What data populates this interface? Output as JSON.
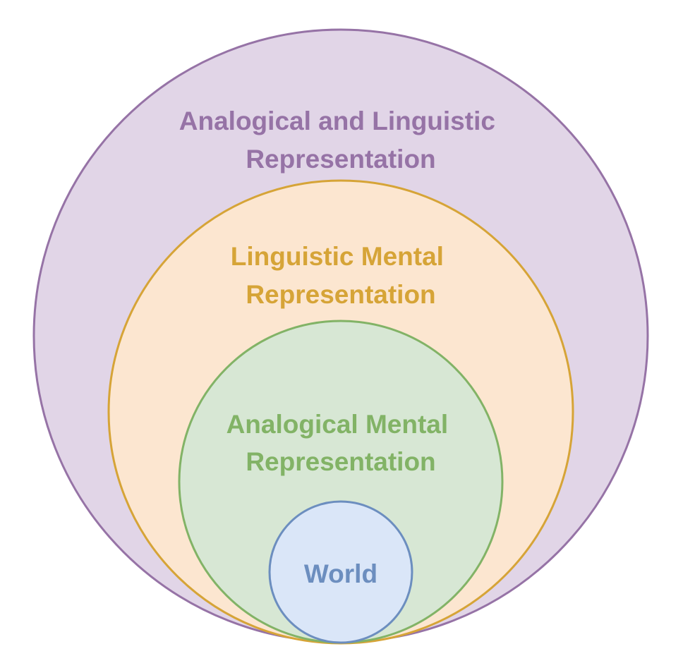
{
  "rings": {
    "outer": {
      "line1": "Analogical and Linguistic",
      "line2": "Representation",
      "fill": "#e1d5e7",
      "stroke": "#9673a6"
    },
    "linguistic": {
      "line1": "Linguistic Mental",
      "line2": "Representation",
      "fill": "#fce6d0",
      "stroke": "#d6a437"
    },
    "analogical": {
      "line1": "Analogical Mental",
      "line2": "Representation",
      "fill": "#d7e7d4",
      "stroke": "#82b366"
    },
    "world": {
      "label": "World",
      "fill": "#dae6f8",
      "stroke": "#6c8ebf"
    }
  }
}
